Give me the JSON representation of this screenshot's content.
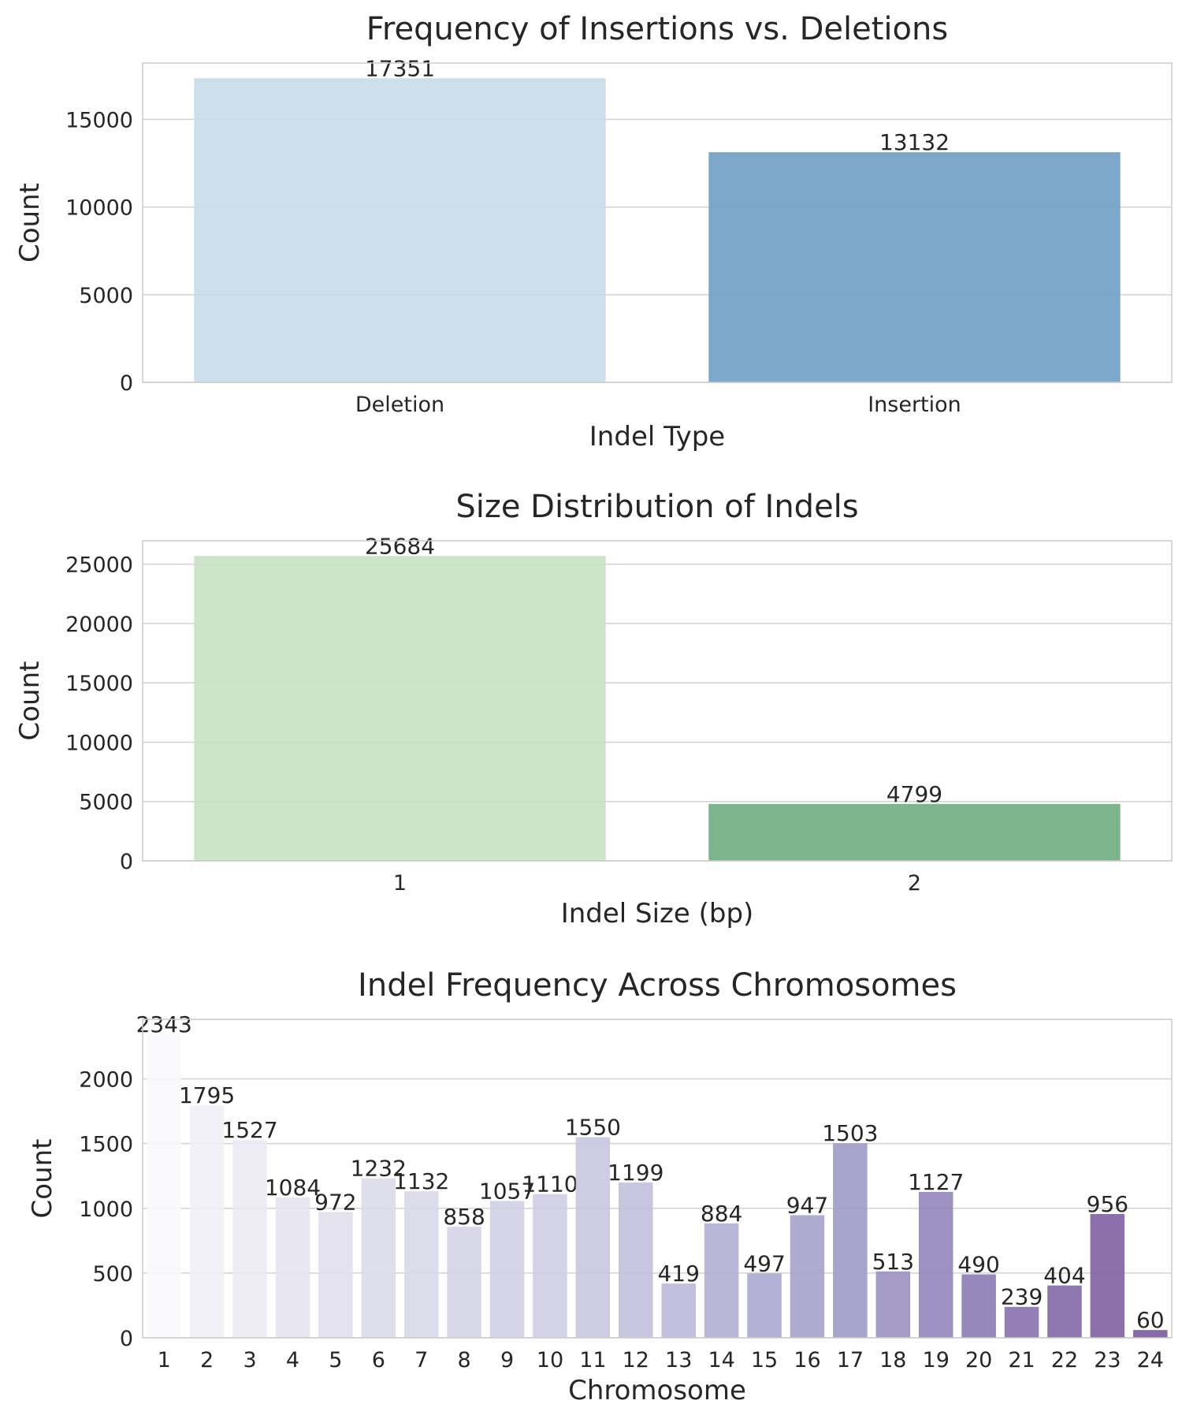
{
  "chart_data": [
    {
      "type": "bar",
      "title": "Frequency of Insertions vs. Deletions",
      "xlabel": "Indel Type",
      "ylabel": "Count",
      "categories": [
        "Deletion",
        "Insertion"
      ],
      "values": [
        17351,
        13132
      ],
      "data_labels": [
        "17351",
        "13132"
      ],
      "colors": [
        "#c6dbe8",
        "#6f9fc6"
      ],
      "bar_opacity": 0.9,
      "ylim": [
        0,
        18218
      ],
      "yticks": [
        0,
        5000,
        10000,
        15000
      ],
      "ytick_labels": [
        "0",
        "5000",
        "10000",
        "15000"
      ],
      "grid": true
    },
    {
      "type": "bar",
      "title": "Size Distribution of Indels",
      "xlabel": "Indel Size (bp)",
      "ylabel": "Count",
      "categories": [
        "1",
        "2"
      ],
      "values": [
        25684,
        4799
      ],
      "data_labels": [
        "25684",
        "4799"
      ],
      "colors": [
        "#c6e2c3",
        "#6fac80"
      ],
      "bar_opacity": 0.9,
      "ylim": [
        0,
        26968
      ],
      "yticks": [
        0,
        5000,
        10000,
        15000,
        20000,
        25000
      ],
      "ytick_labels": [
        "0",
        "5000",
        "10000",
        "15000",
        "20000",
        "25000"
      ],
      "grid": true
    },
    {
      "type": "bar",
      "title": "Indel Frequency Across Chromosomes",
      "xlabel": "Chromosome",
      "ylabel": "Count",
      "categories": [
        "1",
        "2",
        "3",
        "4",
        "5",
        "6",
        "7",
        "8",
        "9",
        "10",
        "11",
        "12",
        "13",
        "14",
        "15",
        "16",
        "17",
        "18",
        "19",
        "20",
        "21",
        "22",
        "23",
        "24"
      ],
      "values": [
        2343,
        1795,
        1527,
        1084,
        972,
        1232,
        1132,
        858,
        1057,
        1110,
        1550,
        1199,
        419,
        884,
        497,
        947,
        1503,
        513,
        1127,
        490,
        239,
        404,
        956,
        60
      ],
      "data_labels": [
        "2343",
        "1795",
        "1527",
        "1084",
        "972",
        "1232",
        "1132",
        "858",
        "1057",
        "1110",
        "1550",
        "1199",
        "419",
        "884",
        "497",
        "947",
        "1503",
        "513",
        "1127",
        "490",
        "239",
        "404",
        "956",
        "60"
      ],
      "colors": [
        "#f8f8fb",
        "#f1f0f6",
        "#ebe9f2",
        "#e6e4ef",
        "#e1dfec",
        "#dcdbea",
        "#d9d8e8",
        "#d5d4e6",
        "#d1cfe4",
        "#cecde3",
        "#c8c6df",
        "#c1bfdb",
        "#bab8d8",
        "#b1afd3",
        "#aba9d0",
        "#a5a2cc",
        "#9f9bc8",
        "#9b91c1",
        "#9386bb",
        "#8c7bb5",
        "#8770ae",
        "#8267a8",
        "#7e60a3",
        "#7b5a9f"
      ],
      "bar_opacity": 0.9,
      "ylim": [
        0,
        2460
      ],
      "yticks": [
        0,
        500,
        1000,
        1500,
        2000
      ],
      "ytick_labels": [
        "0",
        "500",
        "1000",
        "1500",
        "2000"
      ],
      "grid": true
    }
  ]
}
